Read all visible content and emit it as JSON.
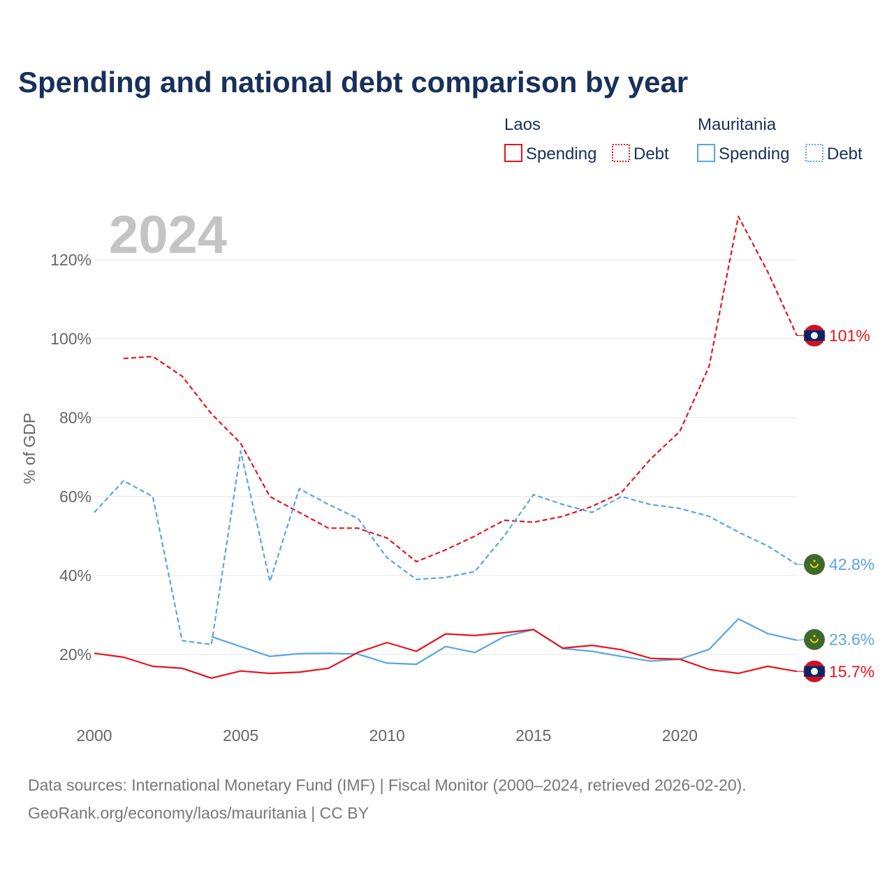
{
  "chart_data": {
    "type": "line",
    "title": "Spending and national debt comparison by year",
    "year_label": "2024",
    "ylabel": "% of GDP",
    "xlim": [
      2000,
      2024
    ],
    "ylim": [
      10,
      135
    ],
    "yticks": [
      20,
      40,
      60,
      80,
      100,
      120
    ],
    "ytick_labels": [
      "20%",
      "40%",
      "60%",
      "80%",
      "100%",
      "120%"
    ],
    "xticks": [
      2000,
      2005,
      2010,
      2015,
      2020
    ],
    "xtick_labels": [
      "2000",
      "2005",
      "2010",
      "2015",
      "2020"
    ],
    "legend": {
      "groups": [
        {
          "country": "Laos",
          "items": [
            {
              "label": "Spending",
              "style": "solid"
            },
            {
              "label": "Debt",
              "style": "dotted"
            }
          ]
        },
        {
          "country": "Mauritania",
          "items": [
            {
              "label": "Spending",
              "style": "solid"
            },
            {
              "label": "Debt",
              "style": "dotted"
            }
          ]
        }
      ],
      "placement": "top-right"
    },
    "series": [
      {
        "name": "Laos Debt",
        "country": "Laos",
        "metric": "Debt",
        "color": "#e8141c",
        "dash": "dashed",
        "x": [
          2001,
          2002,
          2003,
          2004,
          2005,
          2006,
          2007,
          2008,
          2009,
          2010,
          2011,
          2012,
          2013,
          2014,
          2015,
          2016,
          2017,
          2018,
          2019,
          2020,
          2021,
          2022,
          2023,
          2024
        ],
        "values": [
          95.0,
          95.5,
          90.5,
          81.0,
          73.5,
          60.0,
          56.0,
          52.0,
          52.0,
          49.5,
          43.5,
          46.5,
          50.0,
          54.0,
          53.5,
          55.0,
          57.5,
          61.0,
          69.5,
          76.5,
          93.0,
          131.0,
          117.0,
          100.8
        ],
        "end_label": "101%"
      },
      {
        "name": "Mauritania Debt",
        "country": "Mauritania",
        "metric": "Debt",
        "color": "#5aa4e6",
        "dash": "dashed",
        "x": [
          2000,
          2001,
          2002,
          2003,
          2004,
          2005,
          2006,
          2007,
          2008,
          2009,
          2010,
          2011,
          2012,
          2013,
          2014,
          2015,
          2016,
          2017,
          2018,
          2019,
          2020,
          2021,
          2022,
          2023,
          2024
        ],
        "values": [
          56.0,
          64.0,
          60.0,
          23.5,
          22.5,
          71.5,
          38.5,
          62.0,
          58.0,
          54.5,
          44.5,
          39.0,
          39.5,
          41.0,
          50.0,
          60.5,
          58.0,
          56.0,
          60.0,
          58.0,
          57.0,
          55.0,
          51.0,
          47.5,
          42.8
        ],
        "end_label": "42.8%"
      },
      {
        "name": "Mauritania Spending",
        "country": "Mauritania",
        "metric": "Spending",
        "color": "#5aa4e6",
        "dash": "solid",
        "x": [
          2004,
          2005,
          2006,
          2007,
          2008,
          2009,
          2010,
          2011,
          2012,
          2013,
          2014,
          2015,
          2016,
          2017,
          2018,
          2019,
          2020,
          2021,
          2022,
          2023,
          2024
        ],
        "values": [
          24.5,
          22.0,
          19.5,
          20.2,
          20.3,
          20.1,
          17.8,
          17.5,
          22.0,
          20.5,
          24.5,
          26.3,
          21.5,
          20.8,
          19.5,
          18.3,
          18.8,
          21.3,
          29.0,
          25.3,
          23.6
        ],
        "end_label": "23.6%"
      },
      {
        "name": "Laos Spending",
        "country": "Laos",
        "metric": "Spending",
        "color": "#e8141c",
        "dash": "solid",
        "x": [
          2000,
          2001,
          2002,
          2003,
          2004,
          2005,
          2006,
          2007,
          2008,
          2009,
          2010,
          2011,
          2012,
          2013,
          2014,
          2015,
          2016,
          2017,
          2018,
          2019,
          2020,
          2021,
          2022,
          2023,
          2024
        ],
        "values": [
          20.3,
          19.3,
          17.0,
          16.5,
          14.0,
          15.8,
          15.2,
          15.5,
          16.5,
          20.5,
          23.0,
          20.8,
          25.2,
          24.8,
          25.5,
          26.3,
          21.6,
          22.3,
          21.2,
          19.0,
          18.8,
          16.2,
          15.2,
          17.0,
          15.7
        ],
        "end_label": "15.7%"
      }
    ],
    "sources": [
      "Data sources: International Monetary Fund (IMF) | Fiscal Monitor (2000–2024, retrieved 2026-02-20).",
      "GeoRank.org/economy/laos/mauritania | CC BY"
    ]
  },
  "colors": {
    "title": "#18305a",
    "laos": "#e8141c",
    "mauritania": "#5aa4e6",
    "grid": "#e6e6e6",
    "axis_text": "#666666",
    "year": "#c4c4c4"
  },
  "flags": {
    "Laos": "laos-flag-icon",
    "Mauritania": "mauritania-flag-icon"
  }
}
